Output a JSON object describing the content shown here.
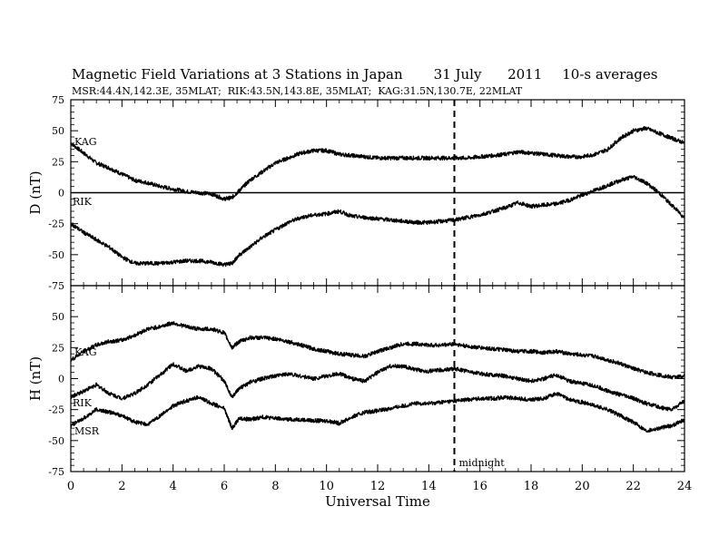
{
  "header": {
    "title": "Magnetic Field Variations at 3 Stations in Japan",
    "date": "31 July      2011",
    "averaging": "10-s averages",
    "stations_line": "MSR:44.4N,142.3E, 35MLAT;  RIK:43.5N,143.8E, 35MLAT;  KAG:31.5N,130.7E, 22MLAT"
  },
  "chart_data": [
    {
      "type": "line",
      "panel": "top",
      "ylabel": "D (nT)",
      "ylim": [
        -75,
        75
      ],
      "yticks": [
        75,
        50,
        25,
        0,
        -25,
        -50,
        -75
      ],
      "xlim": [
        0,
        24
      ],
      "reference_line": 0,
      "series": [
        {
          "name": "KAG",
          "color": "#000000",
          "x": [
            0,
            0.5,
            1,
            1.5,
            2,
            2.5,
            3,
            3.5,
            4,
            4.5,
            5,
            5.5,
            6,
            6.3,
            6.6,
            7,
            7.5,
            8,
            8.5,
            9,
            9.5,
            10,
            10.5,
            11,
            11.5,
            12,
            12.5,
            13,
            13.5,
            14,
            14.5,
            15,
            15.5,
            16,
            16.5,
            17,
            17.5,
            18,
            18.5,
            19,
            19.5,
            20,
            20.5,
            21,
            21.5,
            22,
            22.5,
            23,
            23.5,
            24
          ],
          "values": [
            40,
            32,
            24,
            20,
            15,
            10,
            8,
            5,
            3,
            1,
            0,
            -1,
            -5,
            -4,
            2,
            10,
            17,
            24,
            28,
            32,
            34,
            34,
            31,
            30,
            29,
            28,
            28,
            28,
            28,
            28,
            28,
            28,
            28,
            29,
            30,
            31,
            33,
            32,
            31,
            30,
            29,
            29,
            31,
            35,
            44,
            50,
            52,
            48,
            44,
            40
          ]
        },
        {
          "name": "RIK",
          "color": "#000000",
          "x": [
            0,
            0.5,
            1,
            1.5,
            2,
            2.5,
            3,
            3.5,
            4,
            4.5,
            5,
            5.5,
            6,
            6.3,
            6.6,
            7,
            7.5,
            8,
            8.5,
            9,
            9.5,
            10,
            10.5,
            11,
            11.5,
            12,
            12.5,
            13,
            13.5,
            14,
            14.5,
            15,
            15.5,
            16,
            16.5,
            17,
            17.5,
            18,
            18.5,
            19,
            19.5,
            20,
            20.5,
            21,
            21.5,
            22,
            22.5,
            23,
            23.5,
            24
          ],
          "values": [
            -25,
            -32,
            -38,
            -44,
            -52,
            -57,
            -57,
            -57,
            -56,
            -55,
            -55,
            -56,
            -58,
            -57,
            -50,
            -44,
            -36,
            -30,
            -24,
            -20,
            -18,
            -17,
            -15,
            -19,
            -20,
            -21,
            -22,
            -23,
            -24,
            -24,
            -23,
            -22,
            -20,
            -18,
            -15,
            -12,
            -8,
            -11,
            -10,
            -9,
            -6,
            -2,
            2,
            6,
            10,
            13,
            8,
            0,
            -10,
            -20
          ]
        }
      ]
    },
    {
      "type": "line",
      "panel": "bottom",
      "ylabel": "H (nT)",
      "xlabel": "Universal Time",
      "ylim": [
        -75,
        75
      ],
      "yticks": [
        75,
        50,
        25,
        0,
        -25,
        -50,
        -75
      ],
      "xlim": [
        0,
        24
      ],
      "xticks": [
        0,
        2,
        4,
        6,
        8,
        10,
        12,
        14,
        16,
        18,
        20,
        22,
        24
      ],
      "marker": {
        "x": 15,
        "label": "midnight"
      },
      "series": [
        {
          "name": "KAG",
          "color": "#000000",
          "x": [
            0,
            0.5,
            1,
            1.5,
            2,
            2.5,
            3,
            3.5,
            4,
            4.5,
            5,
            5.5,
            6,
            6.3,
            6.6,
            7,
            7.5,
            8,
            8.5,
            9,
            9.5,
            10,
            10.5,
            11,
            11.5,
            12,
            12.5,
            13,
            13.5,
            14,
            14.5,
            15,
            15.5,
            16,
            16.5,
            17,
            17.5,
            18,
            18.5,
            19,
            19.5,
            20,
            20.5,
            21,
            21.5,
            22,
            22.5,
            23,
            23.5,
            24
          ],
          "values": [
            15,
            22,
            27,
            30,
            31,
            35,
            40,
            42,
            45,
            42,
            40,
            40,
            37,
            25,
            30,
            33,
            33,
            32,
            30,
            27,
            24,
            22,
            20,
            19,
            18,
            22,
            25,
            28,
            28,
            27,
            27,
            28,
            26,
            25,
            24,
            23,
            22,
            22,
            21,
            22,
            20,
            19,
            18,
            15,
            12,
            8,
            5,
            3,
            1,
            2
          ]
        },
        {
          "name": "RIK",
          "color": "#000000",
          "x": [
            0,
            0.5,
            1,
            1.5,
            2,
            2.5,
            3,
            3.5,
            4,
            4.5,
            5,
            5.5,
            6,
            6.3,
            6.6,
            7,
            7.5,
            8,
            8.5,
            9,
            9.5,
            10,
            10.5,
            11,
            11.5,
            12,
            12.5,
            13,
            13.5,
            14,
            14.5,
            15,
            15.5,
            16,
            16.5,
            17,
            17.5,
            18,
            18.5,
            19,
            19.5,
            20,
            20.5,
            21,
            21.5,
            22,
            22.5,
            23,
            23.5,
            24
          ],
          "values": [
            -15,
            -10,
            -5,
            -12,
            -16,
            -12,
            -5,
            3,
            12,
            6,
            10,
            8,
            -2,
            -15,
            -8,
            -3,
            0,
            2,
            4,
            2,
            0,
            2,
            4,
            0,
            -2,
            5,
            10,
            10,
            7,
            6,
            7,
            8,
            6,
            4,
            3,
            2,
            0,
            -2,
            0,
            3,
            -2,
            -4,
            -6,
            -10,
            -13,
            -16,
            -20,
            -23,
            -25,
            -18
          ]
        },
        {
          "name": "MSR",
          "color": "#000000",
          "x": [
            0,
            0.5,
            1,
            1.5,
            2,
            2.5,
            3,
            3.5,
            4,
            4.5,
            5,
            5.5,
            6,
            6.3,
            6.6,
            7,
            7.5,
            8,
            8.5,
            9,
            9.5,
            10,
            10.5,
            11,
            11.5,
            12,
            12.5,
            13,
            13.5,
            14,
            14.5,
            15,
            15.5,
            16,
            16.5,
            17,
            17.5,
            18,
            18.5,
            19,
            19.5,
            20,
            20.5,
            21,
            21.5,
            22,
            22.5,
            23,
            23.5,
            24
          ],
          "values": [
            -38,
            -32,
            -25,
            -27,
            -30,
            -35,
            -37,
            -30,
            -22,
            -18,
            -15,
            -20,
            -24,
            -40,
            -32,
            -33,
            -31,
            -32,
            -33,
            -33,
            -34,
            -34,
            -36,
            -31,
            -27,
            -26,
            -24,
            -22,
            -20,
            -20,
            -19,
            -18,
            -17,
            -16,
            -16,
            -15,
            -16,
            -17,
            -16,
            -12,
            -17,
            -19,
            -22,
            -25,
            -30,
            -35,
            -42,
            -40,
            -38,
            -33
          ]
        }
      ]
    }
  ]
}
